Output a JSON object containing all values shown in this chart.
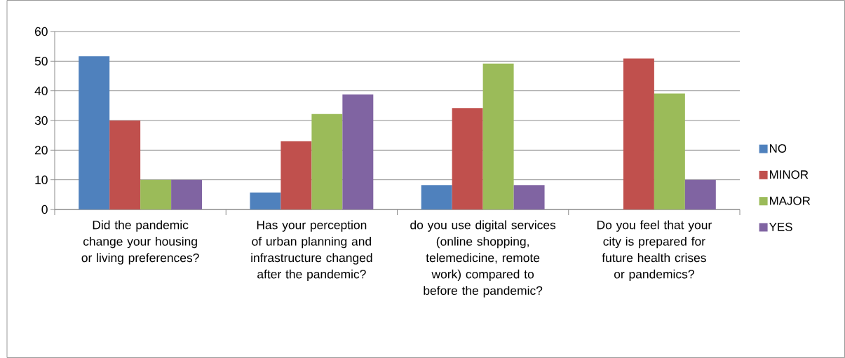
{
  "chart_data": {
    "type": "bar",
    "categories": [
      "Did the pandemic change your housing or living preferences?",
      "Has your perception of urban planning and infrastructure changed after the pandemic?",
      "do you use digital services (online shopping, telemedicine, remote work) compared to before the pandemic?",
      "Do you feel that your city is prepared for future health crises or pandemics?"
    ],
    "series": [
      {
        "name": "NO",
        "color": "#4f81bd",
        "values": [
          51.7,
          5.7,
          8.2,
          0
        ]
      },
      {
        "name": "MINOR",
        "color": "#c0504d",
        "values": [
          30,
          23,
          34.2,
          50.9
        ]
      },
      {
        "name": "MAJOR",
        "color": "#9bbb59",
        "values": [
          10,
          32.2,
          49.2,
          39.1
        ]
      },
      {
        "name": "YES",
        "color": "#8064a2",
        "values": [
          10,
          38.8,
          8.2,
          10
        ]
      }
    ],
    "ylim": [
      0,
      60
    ],
    "yticks": [
      0,
      10,
      20,
      30,
      40,
      50,
      60
    ],
    "grid": "y",
    "legend": "right"
  }
}
